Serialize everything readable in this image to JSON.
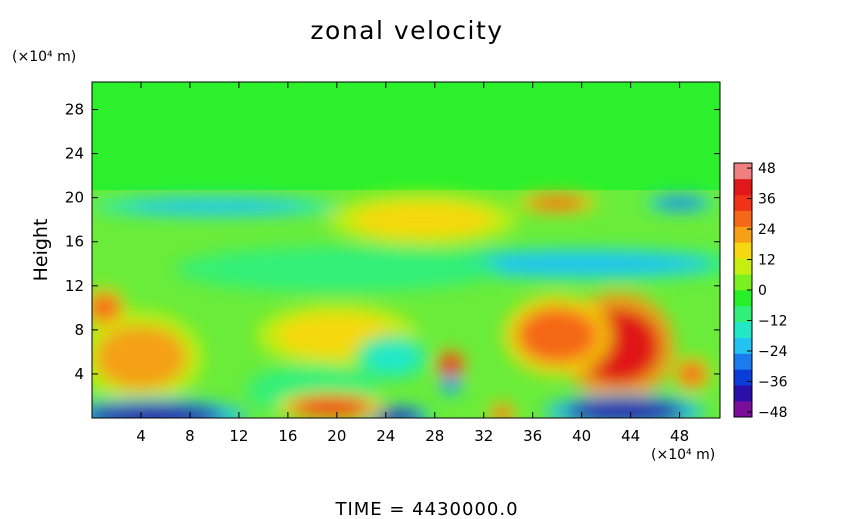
{
  "chart_data": {
    "type": "heatmap",
    "title": "zonal velocity",
    "xlabel": "",
    "ylabel": "Height",
    "x_unit": "(×10⁴ m)",
    "y_unit": "(×10⁴ m)",
    "x_ticks": [
      4,
      8,
      12,
      16,
      20,
      24,
      28,
      32,
      36,
      40,
      44,
      48
    ],
    "y_ticks": [
      4,
      8,
      12,
      16,
      20,
      24,
      28
    ],
    "xlim": [
      0,
      51.3
    ],
    "ylim": [
      0,
      30.5
    ],
    "colorbar": {
      "ticks": [
        48,
        36,
        24,
        12,
        0,
        -12,
        -24,
        -36,
        -48
      ],
      "range": [
        -50,
        50
      ],
      "colors": [
        "#7a0e9a",
        "#2a10a8",
        "#0a3cd8",
        "#1b7cf0",
        "#22c3f0",
        "#22e8c8",
        "#30f07a",
        "#28f028",
        "#7af020",
        "#c8ee10",
        "#f5d810",
        "#f5a015",
        "#f56818",
        "#f03218",
        "#e01818",
        "#f08080"
      ]
    },
    "features": [
      {
        "name": "upper-layer",
        "x": 25,
        "y": 25,
        "value": 6
      },
      {
        "name": "strong-westerly-jet",
        "x": 43,
        "y": 6.5,
        "value": 38
      },
      {
        "name": "westerly-lobe",
        "x": 38,
        "y": 7.5,
        "value": 26
      },
      {
        "name": "westerly-west",
        "x": 4,
        "y": 5.5,
        "value": 22
      },
      {
        "name": "westerly-west-upper",
        "x": 1,
        "y": 10,
        "value": 30
      },
      {
        "name": "westerly-mid",
        "x": 20,
        "y": 7.5,
        "value": 16
      },
      {
        "name": "westerly-right-low",
        "x": 49,
        "y": 4,
        "value": 26
      },
      {
        "name": "easterly-band-high",
        "x": 40,
        "y": 14,
        "value": -22
      },
      {
        "name": "easterly-band-mid",
        "x": 20,
        "y": 13.5,
        "value": -12
      },
      {
        "name": "easterly-tropopause",
        "x": 10,
        "y": 19.2,
        "value": -24
      },
      {
        "name": "easterly-tropopause-right",
        "x": 48,
        "y": 19.5,
        "value": -26
      },
      {
        "name": "westerly-tropopause",
        "x": 38,
        "y": 19.5,
        "value": 30
      },
      {
        "name": "westerly-upper-mid",
        "x": 27,
        "y": 18,
        "value": 14
      },
      {
        "name": "vortex-positive",
        "x": 29.3,
        "y": 4.8,
        "value": 40
      },
      {
        "name": "vortex-negative",
        "x": 29.3,
        "y": 3.0,
        "value": -30
      },
      {
        "name": "easterly-low-mid",
        "x": 18,
        "y": 2.5,
        "value": -12
      },
      {
        "name": "easterly-mid-south",
        "x": 24.5,
        "y": 5.5,
        "value": -18
      },
      {
        "name": "surface-easterly-west",
        "x": 5,
        "y": 0.2,
        "value": -40
      },
      {
        "name": "surface-easterly-25",
        "x": 25,
        "y": 0.1,
        "value": -38
      },
      {
        "name": "surface-easterly-east",
        "x": 43.5,
        "y": 0.6,
        "value": -42
      },
      {
        "name": "surface-westerly",
        "x": 19.5,
        "y": 1.0,
        "value": 34
      },
      {
        "name": "surface-westerly-33",
        "x": 33.5,
        "y": 0.4,
        "value": 28
      }
    ]
  },
  "footer": {
    "time_label": "TIME  =  4430000.0"
  }
}
